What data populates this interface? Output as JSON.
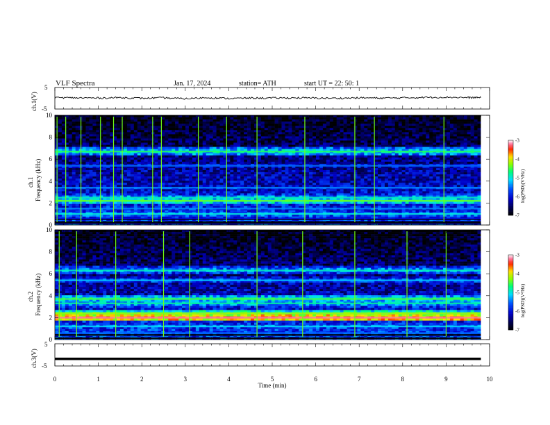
{
  "header": {
    "title": "VLF  Spectra",
    "date": "Jan.  17,  2024",
    "station": "station= ATH",
    "start": "start  UT  =    22: 50: 1"
  },
  "chart_data": [
    {
      "type": "line",
      "title": "",
      "ylabel": "ch.1(V)",
      "ylim": [
        -5,
        5
      ],
      "yticks": [
        "5",
        "-5"
      ],
      "xlim": [
        0,
        10
      ],
      "series": [
        {
          "x": [
            0,
            0.5,
            1,
            1.5,
            2,
            2.5,
            3,
            3.5,
            4,
            4.5,
            5,
            5.5,
            6,
            6.5,
            7,
            7.5,
            8,
            8.5,
            9,
            9.5,
            9.8
          ],
          "values": [
            0.3,
            0.2,
            0.1,
            0.3,
            0.0,
            0.2,
            -0.2,
            0.3,
            -0.1,
            0.1,
            0.1,
            0.2,
            0.1,
            0.0,
            0.2,
            0.1,
            0.2,
            0.4,
            0.5,
            0.3,
            0.3
          ]
        }
      ]
    },
    {
      "type": "heatmap",
      "ylabel": "ch.1\nFrequency (kHz)",
      "ylabel_lines": [
        "ch.1",
        "Frequency (kHz)"
      ],
      "ylim": [
        0,
        10
      ],
      "yticks": [
        "0",
        "2",
        "4",
        "6",
        "8",
        "10"
      ],
      "xlim": [
        0,
        10
      ],
      "data_end_min": 9.8,
      "colorbar": {
        "label": "log(PSD)(V²/Hz)",
        "range": [
          -7,
          -3
        ],
        "ticks": [
          "-3",
          "-4",
          "-5",
          "-6",
          "-7"
        ]
      },
      "bands_khz": [
        {
          "f": 0.2,
          "level": -6.8
        },
        {
          "f": 0.6,
          "level": -6.5
        },
        {
          "f": 1.0,
          "level": -5.4
        },
        {
          "f": 1.5,
          "level": -5.8
        },
        {
          "f": 2.2,
          "level": -4.8
        },
        {
          "f": 2.5,
          "level": -5.3
        },
        {
          "f": 3.4,
          "level": -5.8
        },
        {
          "f": 5.4,
          "level": -5.9
        },
        {
          "f": 6.7,
          "level": -5.0
        }
      ],
      "spikes_min": [
        0.05,
        0.25,
        0.6,
        1.05,
        1.35,
        1.55,
        2.25,
        2.45,
        3.3,
        3.95,
        4.65,
        5.75,
        6.9,
        7.35,
        8.95
      ]
    },
    {
      "type": "heatmap",
      "ylabel": "ch.2\nFrequency (kHz)",
      "ylabel_lines": [
        "ch.2",
        "Frequency (kHz)"
      ],
      "ylim": [
        0,
        10
      ],
      "yticks": [
        "0",
        "2",
        "4",
        "6",
        "8",
        "10"
      ],
      "xlim": [
        0,
        10
      ],
      "data_end_min": 9.8,
      "colorbar": {
        "label": "log(PSD)(V²/Hz)",
        "range": [
          -7,
          -3
        ],
        "ticks": [
          "-3",
          "-4",
          "-5",
          "-6",
          "-7"
        ]
      },
      "bands_khz": [
        {
          "f": 0.6,
          "level": -5.9
        },
        {
          "f": 1.2,
          "level": -5.5
        },
        {
          "f": 2.0,
          "level": -3.6
        },
        {
          "f": 2.4,
          "level": -4.6
        },
        {
          "f": 3.3,
          "level": -5.2
        },
        {
          "f": 3.7,
          "level": -4.9
        },
        {
          "f": 5.4,
          "level": -5.6
        },
        {
          "f": 6.3,
          "level": -5.3
        }
      ],
      "spikes_min": [
        0.1,
        0.5,
        1.4,
        2.5,
        3.1,
        4.65,
        5.7,
        6.9,
        8.1,
        9.0
      ]
    },
    {
      "type": "line",
      "ylabel": "ch.3(V)",
      "ylim": [
        -5,
        5
      ],
      "yticks": [
        "5",
        "-5"
      ],
      "xlim": [
        0,
        10
      ],
      "xlabel": "Time  (min)",
      "xticks": [
        "0",
        "1",
        "2",
        "3",
        "4",
        "5",
        "6",
        "7",
        "8",
        "9",
        "10"
      ],
      "series": [
        {
          "x": [
            0,
            9.8
          ],
          "values": [
            -1.8,
            -1.8
          ]
        }
      ]
    }
  ]
}
